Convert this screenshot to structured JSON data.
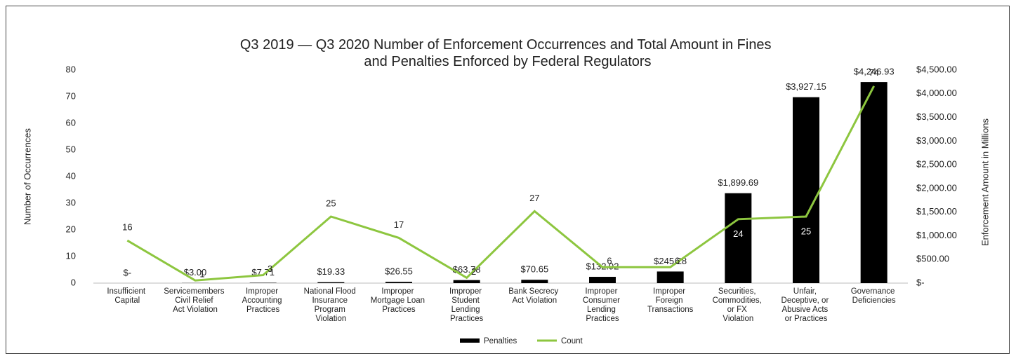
{
  "chart_data": {
    "type": "bar-line",
    "title": "Q3 2019 — Q3 2020 Number of Enforcement Occurrences and Total Amount in Fines and Penalties Enforced by Federal Regulators",
    "ylabel": "Number of Occurrences",
    "y2label": "Enforcement Amount in Millions",
    "categories": [
      "Insufficient Capital",
      "Servicemembers Civil Relief Act Violation",
      "Improper Accounting Practices",
      "National Flood Insurance Program Violation",
      "Improper Mortgage Loan Practices",
      "Improper Student Lending Practices",
      "Bank Secrecy Act Violation",
      "Improper Consumer Lending Practices",
      "Improper Foreign Transactions",
      "Securities, Commodities, or FX Violation",
      "Unfair, Deceptive, or Abusive Acts or Practices",
      "Governance Deficiencies"
    ],
    "series": [
      {
        "name": "Penalties",
        "type": "bar",
        "axis": "y2",
        "color": "#000000",
        "values": [
          0,
          3.0,
          7.71,
          19.33,
          26.55,
          63.78,
          70.65,
          132.92,
          245.28,
          1899.69,
          3927.15,
          4246.93
        ],
        "value_labels": [
          "$-",
          "$3.00",
          "$7.71",
          "$19.33",
          "$26.55",
          "$63.78",
          "$70.65",
          "$132.92",
          "$245.28",
          "$1,899.69",
          "$3,927.15",
          "$4,246.93"
        ]
      },
      {
        "name": "Count",
        "type": "line",
        "axis": "y",
        "color": "#8dc63f",
        "values": [
          16,
          1,
          3,
          25,
          17,
          2,
          27,
          6,
          6,
          24,
          25,
          74
        ]
      }
    ],
    "ylim": [
      0,
      80
    ],
    "yticks": [
      0,
      10,
      20,
      30,
      40,
      50,
      60,
      70,
      80
    ],
    "y2lim": [
      0,
      4500
    ],
    "y2ticks": [
      {
        "value": 0,
        "label": "$-"
      },
      {
        "value": 500,
        "label": "$500.00"
      },
      {
        "value": 1000,
        "label": "$1,000.00"
      },
      {
        "value": 1500,
        "label": "$1,500.00"
      },
      {
        "value": 2000,
        "label": "$2,000.00"
      },
      {
        "value": 2500,
        "label": "$2,500.00"
      },
      {
        "value": 3000,
        "label": "$3,000.00"
      },
      {
        "value": 3500,
        "label": "$3,500.00"
      },
      {
        "value": 4000,
        "label": "$4,000.00"
      },
      {
        "value": 4500,
        "label": "$4,500.00"
      }
    ],
    "legend": "bottom"
  }
}
